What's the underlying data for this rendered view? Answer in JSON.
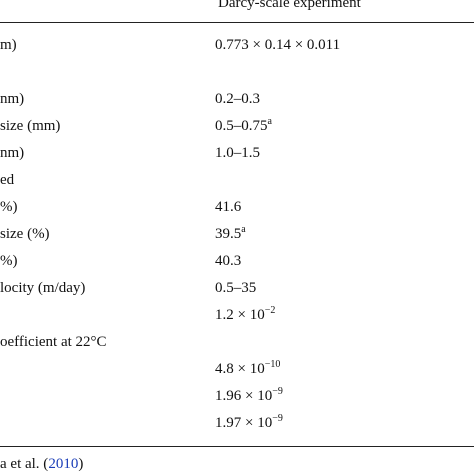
{
  "table": {
    "header": "Darcy-scale experiment",
    "rows": [
      {
        "label": "m)",
        "value": "0.773 × 0.14 × 0.011",
        "sup": ""
      },
      {
        "label": "",
        "value": "",
        "sup": ""
      },
      {
        "label": "nm)",
        "value": "0.2–0.3",
        "sup": ""
      },
      {
        "label": "size (mm)",
        "value": "0.5–0.75",
        "sup": "a"
      },
      {
        "label": "nm)",
        "value": "1.0–1.5",
        "sup": ""
      },
      {
        "label": "ed",
        "value": "",
        "sup": ""
      },
      {
        "label": "%)",
        "value": "41.6",
        "sup": ""
      },
      {
        "label": "size (%)",
        "value": "39.5",
        "sup": "a"
      },
      {
        "label": "%)",
        "value": "40.3",
        "sup": ""
      },
      {
        "label": "locity (m/day)",
        "value": "0.5–35",
        "sup": ""
      },
      {
        "label": "",
        "value": "1.2 × 10",
        "sup": "−2"
      },
      {
        "label": "oefficient at 22°C",
        "value": "",
        "sup": ""
      },
      {
        "label": "",
        "value": "4.8 × 10",
        "sup": "−10"
      },
      {
        "label": "",
        "value": "1.96 × 10",
        "sup": "−9"
      },
      {
        "label": "",
        "value": "1.97 × 10",
        "sup": "−9"
      }
    ]
  },
  "footnote": {
    "prefix": "a et al. (",
    "year": "2010",
    "suffix": ")"
  }
}
